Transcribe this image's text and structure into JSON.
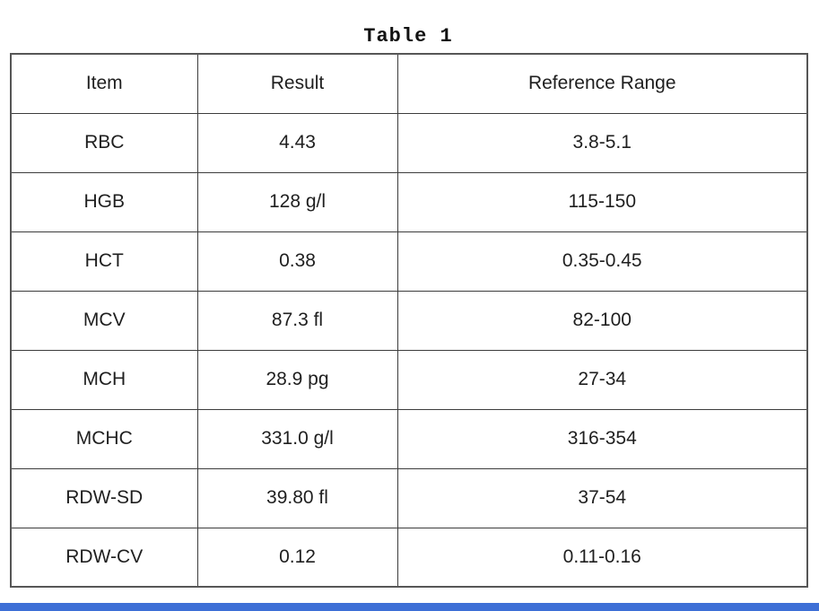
{
  "page": {
    "title": "Table 1",
    "background_color": "#ffffff",
    "text_color": "#1f1f1f",
    "grid_line_color": "#3c3c3c",
    "footer_bar_color": "#3d6fd6"
  },
  "table": {
    "headers": [
      "Item",
      "Result",
      "Reference Range"
    ],
    "rows": [
      {
        "item": "RBC",
        "result": "4.43",
        "reference_range": "3.8-5.1"
      },
      {
        "item": "HGB",
        "result": "128 g/l",
        "reference_range": "115-150"
      },
      {
        "item": "HCT",
        "result": "0.38",
        "reference_range": "0.35-0.45"
      },
      {
        "item": "MCV",
        "result": "87.3 fl",
        "reference_range": "82-100"
      },
      {
        "item": "MCH",
        "result": "28.9 pg",
        "reference_range": "27-34"
      },
      {
        "item": "MCHC",
        "result": "331.0 g/l",
        "reference_range": "316-354"
      },
      {
        "item": "RDW-SD",
        "result": "39.80 fl",
        "reference_range": "37-54"
      },
      {
        "item": "RDW-CV",
        "result": "0.12",
        "reference_range": "0.11-0.16"
      }
    ]
  }
}
